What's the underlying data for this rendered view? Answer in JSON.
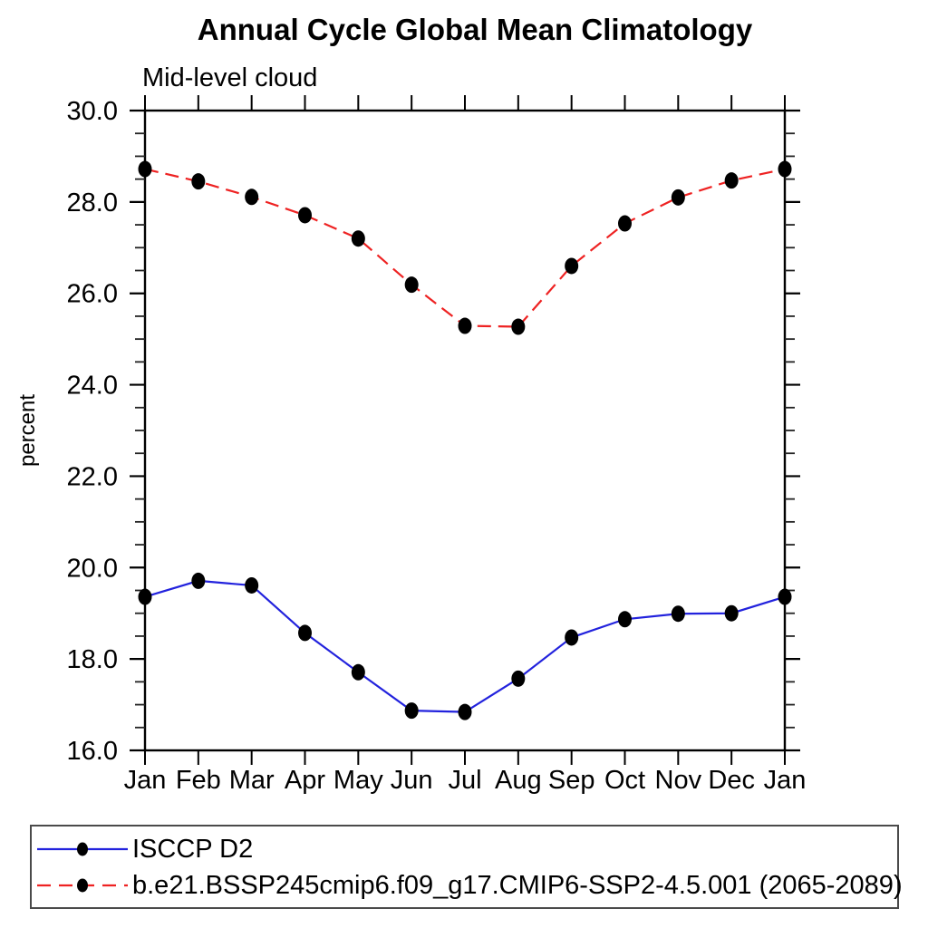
{
  "chart_data": {
    "type": "line",
    "title": "Annual Cycle Global Mean Climatology",
    "subtitle": "Mid-level cloud",
    "xlabel": "",
    "ylabel": "percent",
    "x_categories": [
      "Jan",
      "Feb",
      "Mar",
      "Apr",
      "May",
      "Jun",
      "Jul",
      "Aug",
      "Sep",
      "Oct",
      "Nov",
      "Dec",
      "Jan"
    ],
    "ylim": [
      16.0,
      30.0
    ],
    "ytick_interval": 2.0,
    "yminor_interval": 0.5,
    "ytick_labels": [
      "16.0",
      "18.0",
      "20.0",
      "22.0",
      "24.0",
      "26.0",
      "28.0",
      "30.0"
    ],
    "grid": false,
    "legend_position": "bottom-left-box",
    "axis_color": "#000000",
    "marker_color": "#000000",
    "series": [
      {
        "name": "ISCCP D2",
        "color": "#2222dd",
        "style": "solid",
        "marker": "filled-circle",
        "values": [
          19.36,
          19.71,
          19.61,
          18.57,
          17.71,
          16.87,
          16.84,
          17.57,
          18.47,
          18.87,
          18.99,
          19.0,
          19.36
        ]
      },
      {
        "name": "b.e21.BSSP245cmip6.f09_g17.CMIP6-SSP2-4.5.001 (2065-2089)",
        "color": "#ee2222",
        "style": "dashed",
        "marker": "filled-circle",
        "values": [
          28.72,
          28.45,
          28.11,
          27.71,
          27.2,
          26.19,
          25.29,
          25.27,
          26.6,
          27.53,
          28.1,
          28.47,
          28.72
        ]
      }
    ]
  }
}
